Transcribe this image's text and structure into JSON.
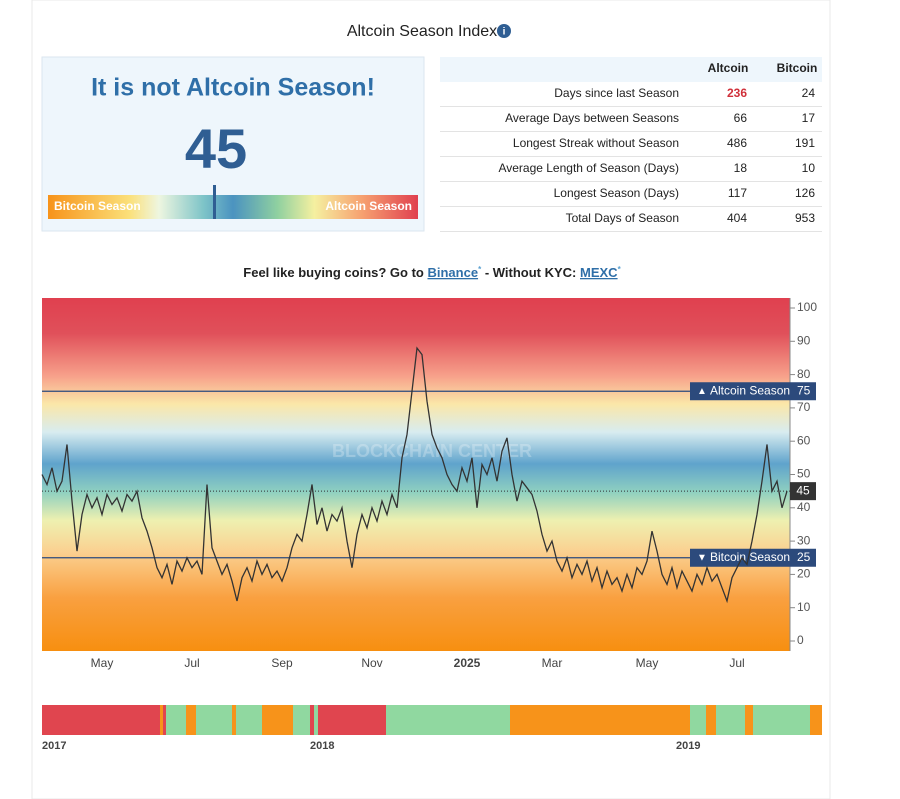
{
  "header": {
    "title": "Altcoin Season Index"
  },
  "gauge": {
    "headline": "It is not Altcoin Season!",
    "value": 45,
    "left_label": "Bitcoin Season",
    "right_label": "Altcoin Season"
  },
  "table": {
    "columns": [
      "Altcoin",
      "Bitcoin"
    ],
    "rows": [
      [
        "Days since last Season",
        236,
        24
      ],
      [
        "Average Days between Seasons",
        66,
        17
      ],
      [
        "Longest Streak without Season",
        486,
        191
      ],
      [
        "Average Length of Season (Days)",
        18,
        10
      ],
      [
        "Longest Season (Days)",
        117,
        126
      ],
      [
        "Total Days of Season",
        404,
        953
      ]
    ]
  },
  "promo": {
    "text": "Feel like buying coins? Go to",
    "link1": "Binance",
    "mark1": "*",
    "middle": "- Without KYC:",
    "link2": "MEXC",
    "mark2": "*"
  },
  "chart_data": {
    "type": "line",
    "watermark": "BLOCKCHAIN CENTER",
    "color": "#333333",
    "categories": [
      null,
      null,
      null,
      null,
      null,
      null,
      null,
      null,
      null,
      null,
      null,
      null,
      "May",
      null,
      null,
      null,
      null,
      null,
      null,
      null,
      null,
      null,
      null,
      null,
      null,
      null,
      null,
      null,
      null,
      null,
      "Jul",
      null,
      null,
      null,
      null,
      null,
      null,
      null,
      null,
      null,
      null,
      null,
      null,
      null,
      null,
      null,
      null,
      null,
      "Sep",
      null,
      null,
      null,
      null,
      null,
      null,
      null,
      null,
      null,
      null,
      null,
      null,
      null,
      null,
      null,
      null,
      null,
      "Nov",
      null,
      null,
      null,
      null,
      null,
      null,
      null,
      null,
      null,
      null,
      null,
      null,
      null,
      null,
      null,
      null,
      null,
      null,
      "2025",
      null,
      null,
      null,
      null,
      null,
      null,
      null,
      null,
      null,
      null,
      null,
      null,
      null,
      null,
      null,
      null,
      "Mar",
      null,
      null,
      null,
      null,
      null,
      null,
      null,
      null,
      null,
      null,
      null,
      null,
      null,
      null,
      null,
      null,
      null,
      null,
      "May",
      null,
      null,
      null,
      null,
      null,
      null,
      null,
      null,
      null,
      null,
      null,
      null,
      null,
      null,
      null,
      null,
      null,
      "Jul",
      null,
      null,
      null,
      null,
      null,
      null,
      null,
      null,
      null,
      null
    ],
    "values": [
      50,
      47,
      52,
      45,
      48,
      59,
      42,
      27,
      38,
      44,
      40,
      43,
      38,
      44,
      41,
      43,
      39,
      44,
      42,
      45,
      37,
      33,
      28,
      22,
      19,
      23,
      17,
      24,
      21,
      25,
      22,
      24,
      20,
      47,
      28,
      24,
      20,
      23,
      18,
      12,
      19,
      22,
      18,
      24,
      20,
      23,
      19,
      21,
      18,
      22,
      28,
      32,
      30,
      38,
      47,
      35,
      40,
      33,
      38,
      36,
      40,
      30,
      22,
      32,
      38,
      34,
      40,
      36,
      42,
      38,
      44,
      40,
      55,
      62,
      75,
      88,
      86,
      72,
      62,
      58,
      55,
      50,
      47,
      45,
      52,
      48,
      55,
      40,
      53,
      50,
      55,
      48,
      57,
      61,
      50,
      42,
      48,
      46,
      44,
      39,
      32,
      27,
      30,
      24,
      21,
      25,
      19,
      23,
      20,
      24,
      18,
      22,
      16,
      21,
      17,
      19,
      15,
      20,
      16,
      22,
      20,
      24,
      33,
      27,
      20,
      17,
      22,
      16,
      21,
      18,
      15,
      20,
      17,
      22,
      18,
      20,
      16,
      12,
      19,
      22,
      25,
      23,
      30,
      38,
      48,
      59,
      45,
      48,
      40,
      45
    ],
    "ylim": [
      -3,
      103
    ],
    "yticks": [
      0,
      10,
      20,
      30,
      40,
      50,
      60,
      70,
      80,
      90,
      100
    ],
    "thresholds": [
      {
        "label": "Altcoin Season",
        "value": 75
      },
      {
        "label": "Bitcoin Season",
        "value": 25
      }
    ]
  },
  "timeline": {
    "ticks": [
      "2017",
      "2018",
      "2019"
    ]
  }
}
